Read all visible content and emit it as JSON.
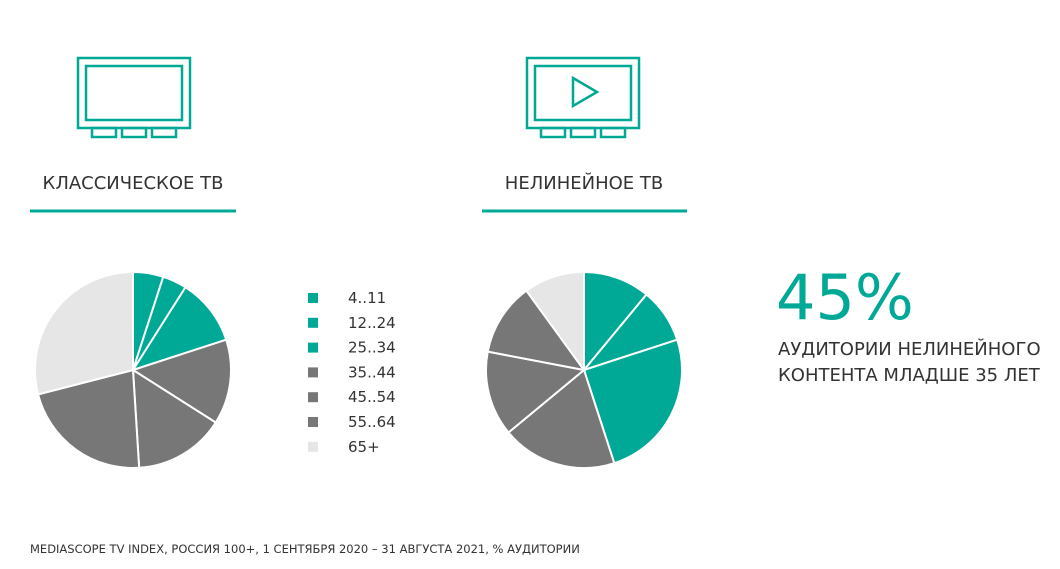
{
  "chart_data": [
    {
      "type": "pie",
      "title": "КЛАССИЧЕСКОЕ ТВ",
      "categories": [
        "4..11",
        "12..24",
        "25..34",
        "35..44",
        "45..54",
        "55..64",
        "65+"
      ],
      "values": [
        5,
        4,
        11,
        14,
        15,
        22,
        29
      ],
      "colors": [
        "#00a896",
        "#00a896",
        "#00a896",
        "#777777",
        "#777777",
        "#777777",
        "#e6e6e6"
      ]
    },
    {
      "type": "pie",
      "title": "НЕЛИНЕЙНОЕ ТВ",
      "categories": [
        "4..11",
        "12..24",
        "25..34",
        "35..44",
        "45..54",
        "55..64",
        "65+"
      ],
      "values": [
        11,
        9,
        25,
        19,
        14,
        12,
        10
      ],
      "colors": [
        "#00a896",
        "#00a896",
        "#00a896",
        "#777777",
        "#777777",
        "#777777",
        "#e6e6e6"
      ]
    }
  ],
  "highlight": {
    "value": "45%",
    "lines": [
      "АУДИТОРИИ НЕЛИНЕЙНОГО",
      "КОНТЕНТА МЛАДШЕ 35 ЛЕТ"
    ]
  },
  "source": "MEDIASCOPE TV INDEX, РОССИЯ 100+, 1 СЕНТЯБРЯ 2020 – 31 АВГУСТА 2021, % АУДИТОРИИ"
}
